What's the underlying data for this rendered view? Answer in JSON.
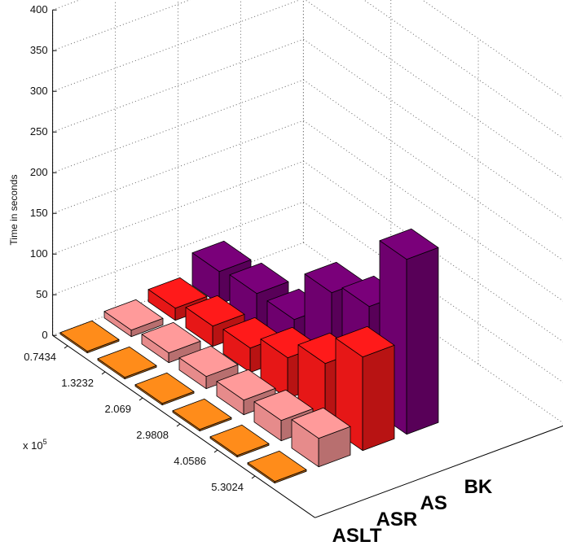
{
  "chart_data": {
    "type": "bar",
    "variant": "3d-grouped",
    "title": "",
    "ylabel": "Time in seconds",
    "xlabel": "",
    "x_multiplier_label": "x 10",
    "x_multiplier_exponent": "5",
    "categories": [
      "0.7434",
      "1.3232",
      "2.069",
      "2.9808",
      "4.0586",
      "5.3024"
    ],
    "y_ticks": [
      "0",
      "50",
      "100",
      "150",
      "200",
      "250",
      "300",
      "350",
      "400"
    ],
    "ylim": [
      0,
      400
    ],
    "grid": true,
    "series": [
      {
        "name": "ASLT",
        "color": "#ff8c1a",
        "values": [
          2,
          2,
          2,
          2,
          2,
          2
        ]
      },
      {
        "name": "ASR",
        "color": "#ff9a9a",
        "values": [
          8,
          12,
          15,
          18,
          25,
          35
        ]
      },
      {
        "name": "AS",
        "color": "#ff1a1a",
        "values": [
          15,
          25,
          30,
          50,
          75,
          115
        ]
      },
      {
        "name": "BK",
        "color": "#7a007a",
        "values": [
          40,
          45,
          45,
          110,
          125,
          215
        ]
      }
    ]
  }
}
